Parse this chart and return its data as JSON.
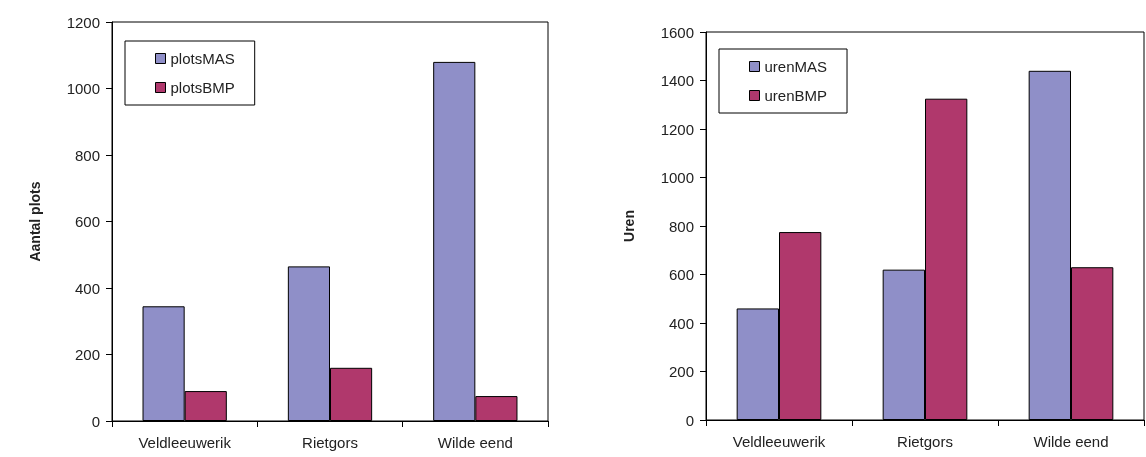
{
  "chart_data": [
    {
      "type": "bar",
      "ylabel": "Aantal plots",
      "categories": [
        "Veldleeuwerik",
        "Rietgors",
        "Wilde eend"
      ],
      "series": [
        {
          "name": "plotsMAS",
          "color": "#8f8fc8",
          "values": [
            345,
            465,
            1080
          ]
        },
        {
          "name": "plotsBMP",
          "color": "#b0386c",
          "values": [
            90,
            160,
            75
          ]
        }
      ],
      "ylim": [
        0,
        1200
      ],
      "yticks": [
        0,
        200,
        400,
        600,
        800,
        1000,
        1200
      ],
      "grid": false,
      "legend": "top left"
    },
    {
      "type": "bar",
      "ylabel": "Uren",
      "categories": [
        "Veldleeuwerik",
        "Rietgors",
        "Wilde eend"
      ],
      "series": [
        {
          "name": "urenMAS",
          "color": "#8f8fc8",
          "values": [
            460,
            620,
            1440
          ]
        },
        {
          "name": "urenBMP",
          "color": "#b0386c",
          "values": [
            775,
            1325,
            630
          ]
        }
      ],
      "ylim": [
        0,
        1600
      ],
      "yticks": [
        0,
        200,
        400,
        600,
        800,
        1000,
        1200,
        1400,
        1600
      ],
      "grid": false,
      "legend": "top left"
    }
  ]
}
